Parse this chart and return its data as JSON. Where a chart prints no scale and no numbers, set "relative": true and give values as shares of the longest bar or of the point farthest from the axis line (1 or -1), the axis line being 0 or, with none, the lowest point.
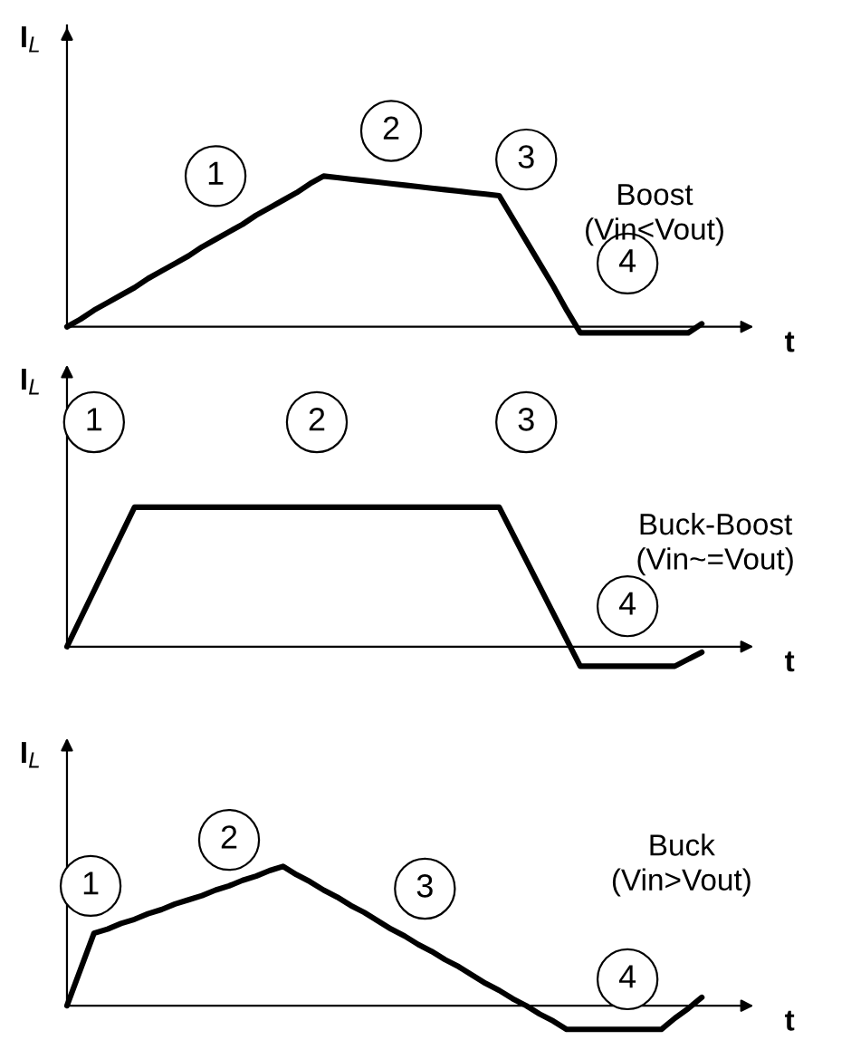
{
  "chart_data": [
    {
      "type": "line",
      "relative": true,
      "title": "Boost\n(Vin<Vout)",
      "ylabel": "I$_{L}$",
      "xlabel": "t",
      "categories": [
        null,
        null,
        null,
        null,
        null,
        null,
        null,
        null,
        null,
        null,
        null,
        null,
        null,
        null,
        null,
        null,
        null,
        null,
        null,
        null,
        null,
        null,
        null,
        null,
        null,
        null,
        null,
        null,
        null,
        null,
        null,
        null,
        null,
        null,
        null,
        null,
        null,
        null,
        null,
        null,
        null,
        null,
        null,
        null,
        null,
        null,
        null,
        null
      ],
      "series": [
        {
          "color": "#000000",
          "values": [
            0,
            0.05,
            0.11,
            0.16,
            0.21,
            0.26,
            0.32,
            0.37,
            0.42,
            0.47,
            0.53,
            0.58,
            0.63,
            0.68,
            0.74,
            0.79,
            0.84,
            0.89,
            0.95,
            1,
            0.99,
            0.98,
            0.97,
            0.96,
            0.95,
            0.94,
            0.93,
            0.92,
            0.91,
            0.9,
            0.89,
            0.88,
            0.87,
            0.72,
            0.57,
            0.42,
            0.27,
            0.11,
            -0.04,
            -0.04,
            -0.04,
            -0.04,
            -0.04,
            -0.04,
            -0.04,
            -0.04,
            -0.04,
            0.02
          ]
        }
      ],
      "annotations": [
        "1",
        "2",
        "3",
        "4"
      ],
      "marker": "none",
      "line_style": "solid"
    },
    {
      "type": "line",
      "relative": true,
      "title": "Buck-Boost\n(Vin~=Vout)",
      "ylabel": "I$_{L}$",
      "xlabel": "t",
      "categories": [
        null,
        null,
        null,
        null,
        null,
        null,
        null,
        null,
        null,
        null,
        null,
        null,
        null,
        null,
        null,
        null,
        null,
        null,
        null,
        null,
        null,
        null,
        null,
        null,
        null,
        null,
        null,
        null,
        null,
        null,
        null,
        null,
        null,
        null,
        null,
        null,
        null,
        null,
        null,
        null,
        null,
        null,
        null,
        null,
        null,
        null,
        null,
        null
      ],
      "series": [
        {
          "color": "#000000",
          "values": [
            0,
            0.2,
            0.4,
            0.6,
            0.8,
            1,
            1,
            1,
            1,
            1,
            1,
            1,
            1,
            1,
            1,
            1,
            1,
            1,
            1,
            1,
            1,
            1,
            1,
            1,
            1,
            1,
            1,
            1,
            1,
            1,
            1,
            1,
            1,
            0.81,
            0.62,
            0.43,
            0.24,
            0.05,
            -0.14,
            -0.14,
            -0.14,
            -0.14,
            -0.14,
            -0.14,
            -0.14,
            -0.14,
            -0.09,
            -0.04
          ]
        }
      ],
      "annotations": [
        "1",
        "2",
        "3",
        "4"
      ],
      "marker": "none",
      "line_style": "solid"
    },
    {
      "type": "line",
      "relative": true,
      "title": "Buck\n(Vin>Vout)",
      "ylabel": "I$_{L}$",
      "xlabel": "t",
      "categories": [
        null,
        null,
        null,
        null,
        null,
        null,
        null,
        null,
        null,
        null,
        null,
        null,
        null,
        null,
        null,
        null,
        null,
        null,
        null,
        null,
        null,
        null,
        null,
        null,
        null,
        null,
        null,
        null,
        null,
        null,
        null,
        null,
        null,
        null,
        null,
        null,
        null,
        null,
        null,
        null,
        null,
        null,
        null,
        null,
        null,
        null,
        null,
        null
      ],
      "series": [
        {
          "color": "#000000",
          "values": [
            0,
            0.26,
            0.52,
            0.55,
            0.59,
            0.62,
            0.66,
            0.69,
            0.73,
            0.76,
            0.79,
            0.83,
            0.86,
            0.9,
            0.93,
            0.97,
            1,
            0.94,
            0.89,
            0.83,
            0.78,
            0.72,
            0.67,
            0.61,
            0.55,
            0.5,
            0.44,
            0.39,
            0.33,
            0.28,
            0.22,
            0.16,
            0.11,
            0.05,
            0,
            -0.06,
            -0.11,
            -0.17,
            -0.17,
            -0.17,
            -0.17,
            -0.17,
            -0.17,
            -0.17,
            -0.17,
            -0.09,
            -0.02,
            0.06
          ]
        }
      ],
      "annotations": [
        "1",
        "2",
        "3",
        "4"
      ],
      "marker": "none",
      "line_style": "solid"
    }
  ]
}
